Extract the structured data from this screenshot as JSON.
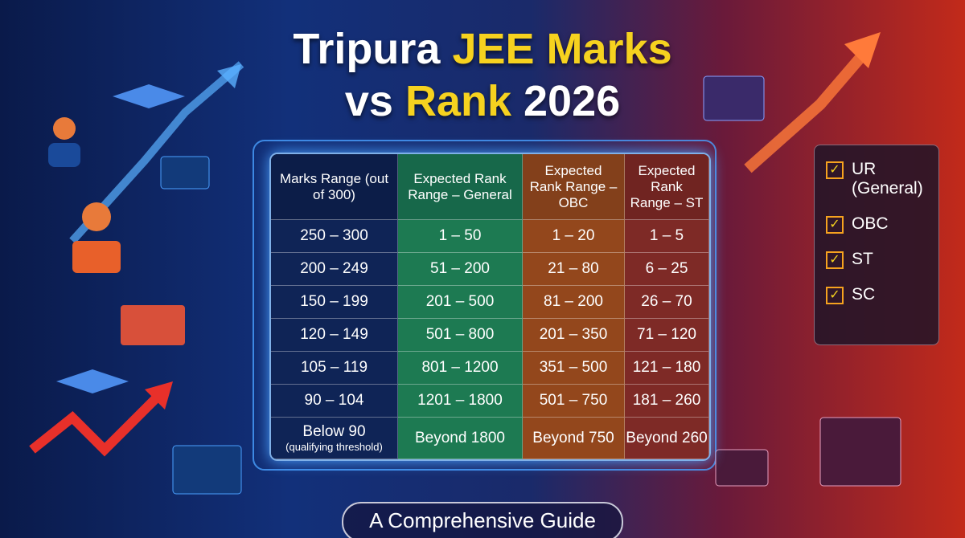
{
  "header": {
    "title_line1": [
      "Tripura",
      "JEE Marks"
    ],
    "title_line2": [
      "vs",
      "Rank",
      "2026"
    ]
  },
  "table": {
    "columns": [
      "Marks Range (out of 300)",
      "Expected Rank Range – General",
      "Expected Rank Range – OBC",
      "Expected Rank Range – ST"
    ],
    "rows": [
      [
        "250 – 300",
        "1 – 50",
        "1 – 20",
        "1 – 5"
      ],
      [
        "200 – 249",
        "51 – 200",
        "21 – 80",
        "6 – 25"
      ],
      [
        "150 – 199",
        "201 – 500",
        "81 – 200",
        "26 – 70"
      ],
      [
        "120 – 149",
        "501 – 800",
        "201 – 350",
        "71 – 120"
      ],
      [
        "105 – 119",
        "801 – 1200",
        "351 – 500",
        "121 – 180"
      ],
      [
        "90 – 104",
        "1201 – 1800",
        "501 – 750",
        "181 – 260"
      ],
      [
        "Below 90",
        "Beyond 1800",
        "Beyond 750",
        "Beyond 260"
      ]
    ],
    "qualifying_note": "(qualifying threshold)"
  },
  "checklist": [
    "UR (General)",
    "OBC",
    "ST",
    "SC"
  ],
  "footer": "A Comprehensive Guide"
}
